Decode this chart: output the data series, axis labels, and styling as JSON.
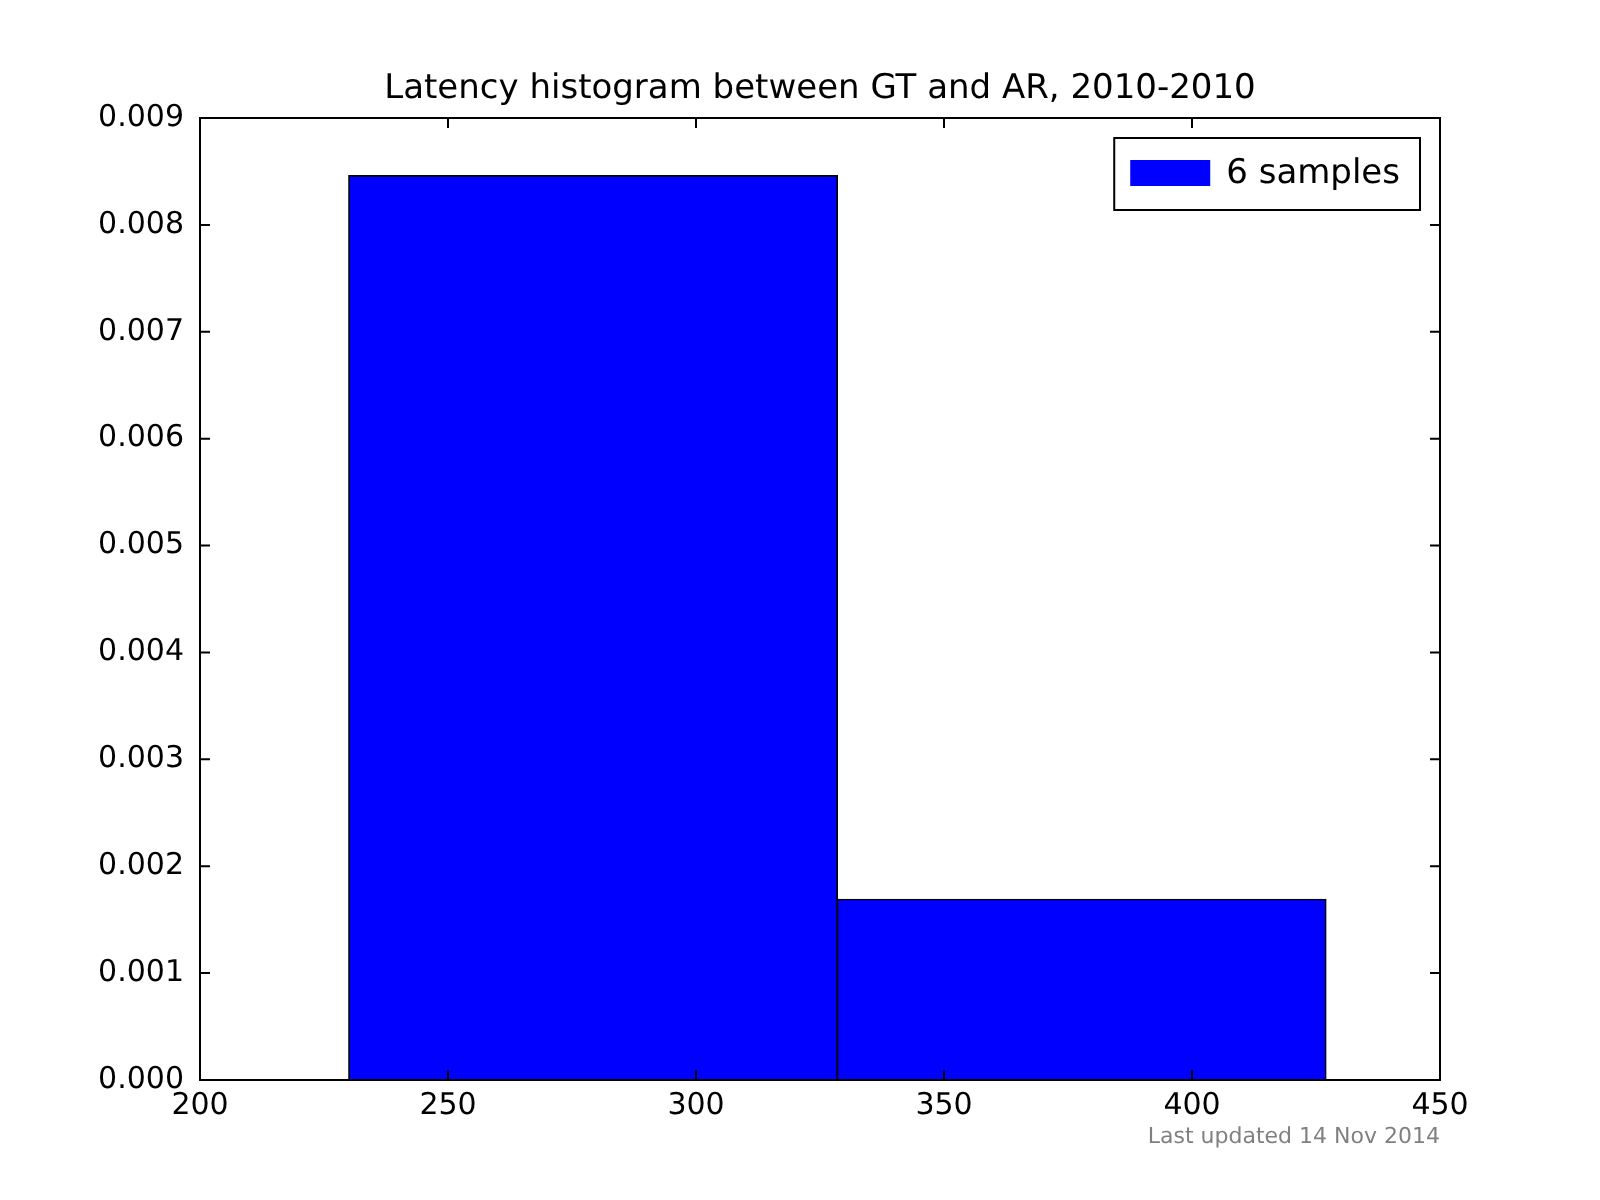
{
  "chart_data": {
    "type": "histogram",
    "title": "Latency histogram between GT and AR, 2010-2010",
    "bins": [
      230,
      328.5,
      427
    ],
    "series": [
      {
        "name": "6 samples",
        "color": "#0000ff",
        "values": [
          0.00846,
          0.00169
        ]
      }
    ],
    "xlim": [
      200,
      450
    ],
    "xticks": [
      200,
      250,
      300,
      350,
      400,
      450
    ],
    "ylim": [
      0,
      0.009
    ],
    "yticks": [
      {
        "value": 0,
        "label": "0.000"
      },
      {
        "value": 0.001,
        "label": "0.001"
      },
      {
        "value": 0.002,
        "label": "0.002"
      },
      {
        "value": 0.003,
        "label": "0.003"
      },
      {
        "value": 0.004,
        "label": "0.004"
      },
      {
        "value": 0.005,
        "label": "0.005"
      },
      {
        "value": 0.006,
        "label": "0.006"
      },
      {
        "value": 0.007,
        "label": "0.007"
      },
      {
        "value": 0.008,
        "label": "0.008"
      },
      {
        "value": 0.009,
        "label": "0.009"
      }
    ],
    "grid": false,
    "legend": "top right",
    "annotations": [
      "Last updated 14 Nov 2014"
    ]
  }
}
